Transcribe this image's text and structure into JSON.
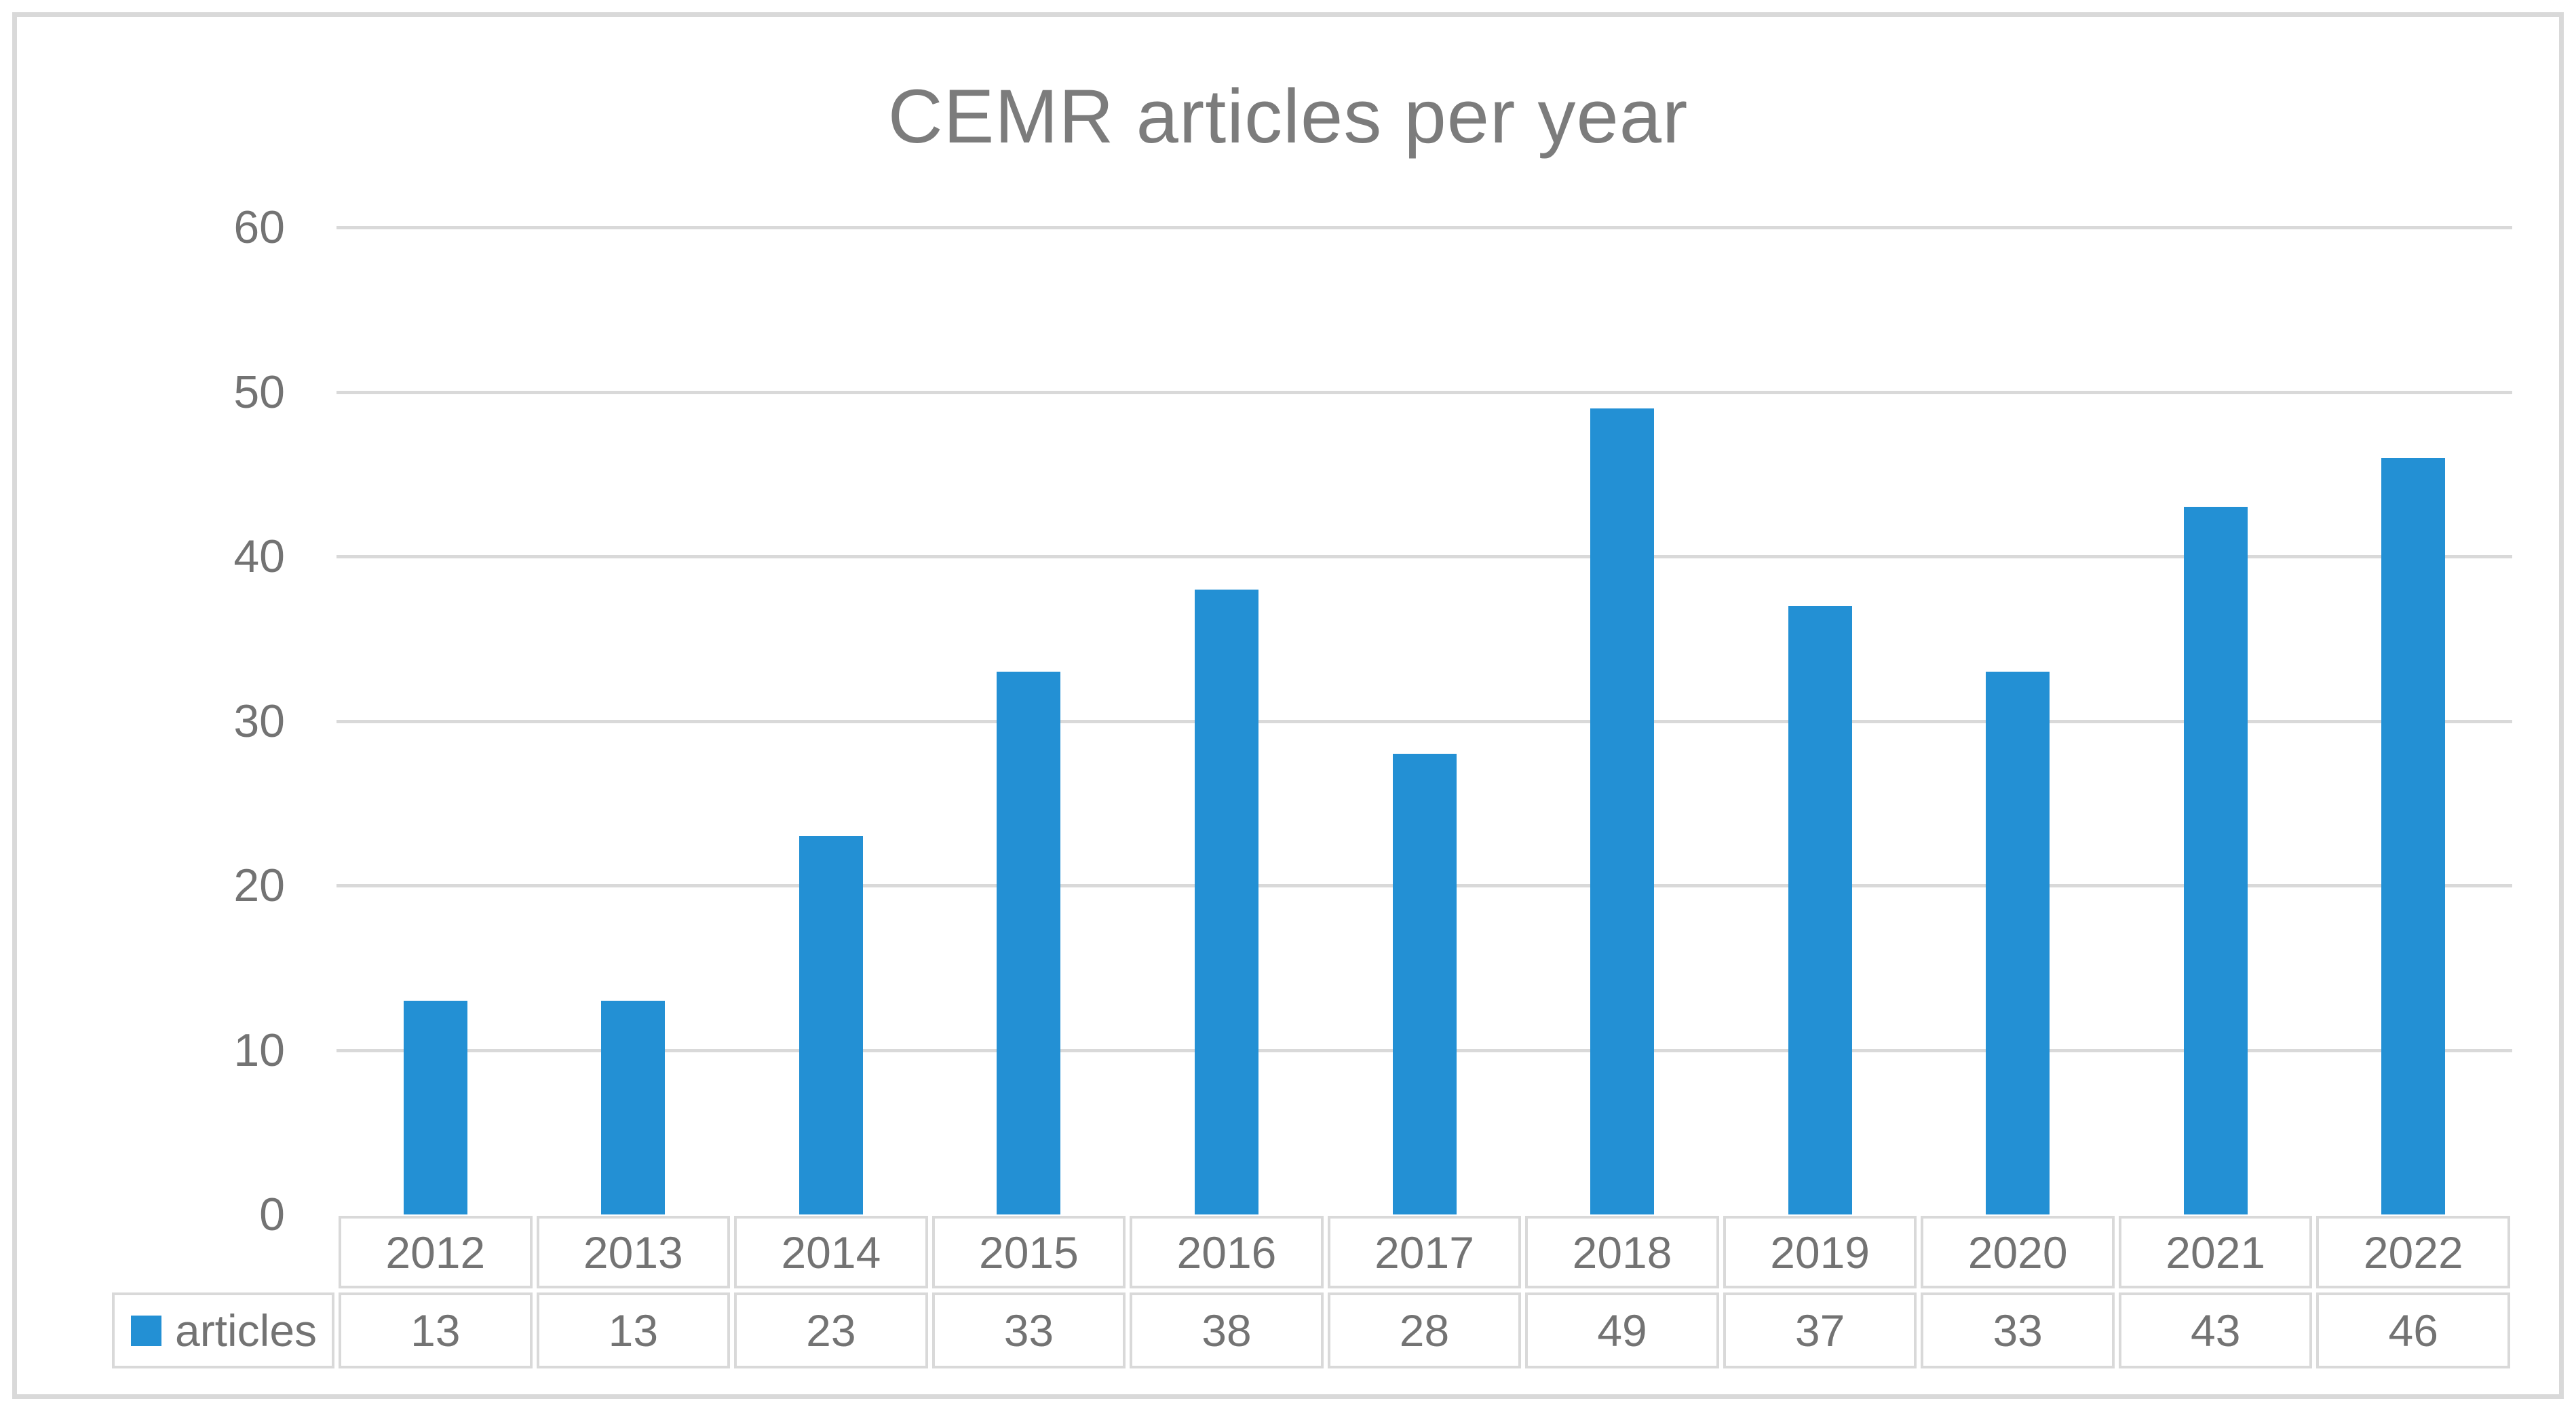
{
  "chart_data": {
    "type": "bar",
    "title": "CEMR articles per year",
    "categories": [
      "2012",
      "2013",
      "2014",
      "2015",
      "2016",
      "2017",
      "2018",
      "2019",
      "2020",
      "2021",
      "2022"
    ],
    "series": [
      {
        "name": "articles",
        "values": [
          13,
          13,
          23,
          33,
          38,
          28,
          49,
          37,
          33,
          43,
          46
        ]
      }
    ],
    "xlabel": "",
    "ylabel": "",
    "ylim": [
      0,
      60
    ],
    "yticks": [
      0,
      10,
      20,
      30,
      40,
      50,
      60
    ],
    "grid": "horizontal",
    "legend_position": "bottom-table-left",
    "colors": {
      "bar": "#2390D4",
      "grid": "#D9D9D9",
      "text": "#737373",
      "title": "#7C7C7C",
      "table_border": "#D9D9D9",
      "figure_border": "#D9D9D9",
      "background": "#FFFFFF"
    }
  }
}
